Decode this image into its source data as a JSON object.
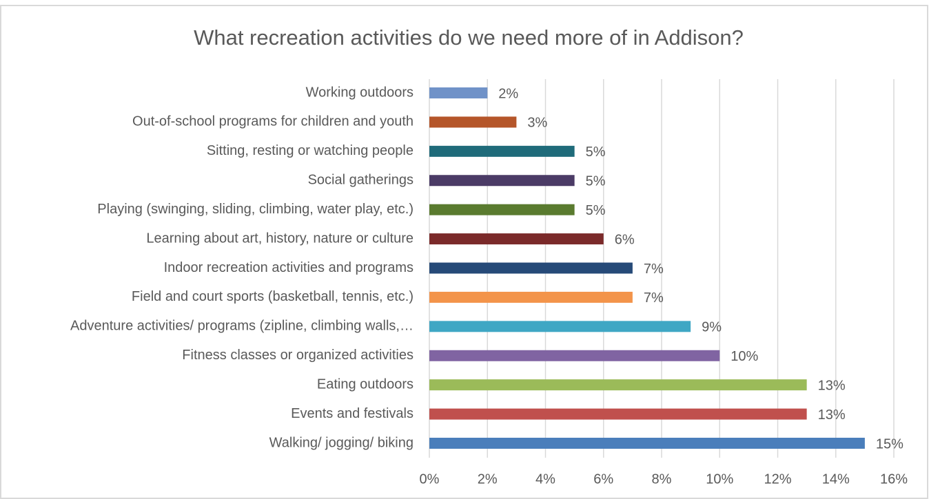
{
  "chart_data": {
    "type": "bar",
    "orientation": "horizontal",
    "title": "What recreation activities do we need more of in Addison?",
    "categories": [
      "Working outdoors",
      "Out-of-school programs for children and youth",
      "Sitting, resting or watching people",
      "Social gatherings",
      "Playing (swinging, sliding, climbing, water play, etc.)",
      "Learning about art, history, nature or culture",
      "Indoor recreation activities and programs",
      "Field and court sports (basketball, tennis, etc.)",
      "Adventure activities/ programs (zipline, climbing walls,…",
      "Fitness classes or organized activities",
      "Eating outdoors",
      "Events and festivals",
      "Walking/ jogging/ biking"
    ],
    "values": [
      2,
      3,
      5,
      5,
      5,
      6,
      7,
      7,
      9,
      10,
      13,
      13,
      15
    ],
    "value_labels": [
      "2%",
      "3%",
      "5%",
      "5%",
      "5%",
      "6%",
      "7%",
      "7%",
      "9%",
      "10%",
      "13%",
      "13%",
      "15%"
    ],
    "colors": [
      "#7092c8",
      "#b5562a",
      "#1f6b7a",
      "#4b3b66",
      "#5a7b2f",
      "#7b2a2a",
      "#264a78",
      "#f3944a",
      "#3fa7c4",
      "#8064a2",
      "#9bbb59",
      "#c0504d",
      "#4a7ebb"
    ],
    "xlim": [
      0,
      16
    ],
    "xticks": [
      {
        "value": 0,
        "label": "0%"
      },
      {
        "value": 2,
        "label": "2%"
      },
      {
        "value": 4,
        "label": "4%"
      },
      {
        "value": 6,
        "label": "6%"
      },
      {
        "value": 8,
        "label": "8%"
      },
      {
        "value": 10,
        "label": "10%"
      },
      {
        "value": 12,
        "label": "12%"
      },
      {
        "value": 14,
        "label": "14%"
      },
      {
        "value": 16,
        "label": "16%"
      }
    ],
    "grid": true
  }
}
